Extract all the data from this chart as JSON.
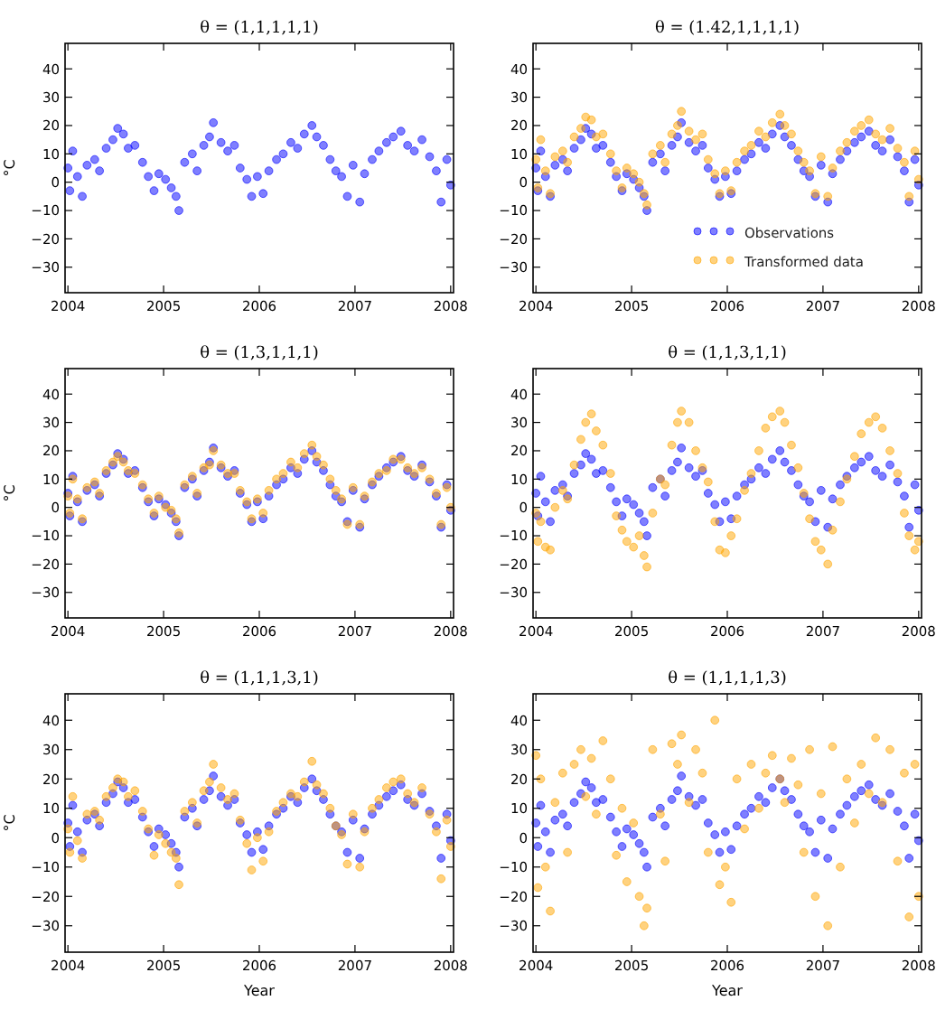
{
  "chart_data": [
    {
      "type": "scatter",
      "title": "θ = (1,1,1,1,1)",
      "ylabel": "°C",
      "xlim": [
        2003.97,
        2008.03
      ],
      "xticks": [
        2004,
        2005,
        2006,
        2007,
        2008
      ],
      "ylim": [
        -39,
        49
      ],
      "yticks": [
        -30,
        -20,
        -10,
        0,
        10,
        20,
        30,
        40
      ],
      "marker": "circle",
      "series": [
        {
          "color": "#0000ff",
          "x": [
            2004.0,
            2004.02,
            2004.05,
            2004.1,
            2004.15,
            2004.2,
            2004.28,
            2004.33,
            2004.4,
            2004.47,
            2004.52,
            2004.58,
            2004.63,
            2004.7,
            2004.78,
            2004.84,
            2004.9,
            2004.95,
            2005.02,
            2005.08,
            2005.13,
            2005.16,
            2005.22,
            2005.3,
            2005.35,
            2005.42,
            2005.48,
            2005.52,
            2005.6,
            2005.67,
            2005.74,
            2005.8,
            2005.87,
            2005.92,
            2005.98,
            2006.04,
            2006.1,
            2006.18,
            2006.25,
            2006.33,
            2006.4,
            2006.47,
            2006.55,
            2006.6,
            2006.67,
            2006.74,
            2006.8,
            2006.86,
            2006.92,
            2006.98,
            2007.05,
            2007.1,
            2007.18,
            2007.25,
            2007.33,
            2007.4,
            2007.48,
            2007.55,
            2007.62,
            2007.7,
            2007.78,
            2007.85,
            2007.9,
            2007.96,
            2008.0
          ],
          "values": [
            5,
            -3,
            11,
            2,
            -5,
            6,
            8,
            4,
            12,
            15,
            19,
            17,
            12,
            13,
            7,
            2,
            -3,
            3,
            1,
            -2,
            -5,
            -10,
            7,
            10,
            4,
            13,
            16,
            21,
            14,
            11,
            13,
            5,
            1,
            -5,
            2,
            -4,
            4,
            8,
            10,
            14,
            12,
            17,
            20,
            16,
            13,
            8,
            4,
            2,
            -5,
            6,
            -7,
            3,
            8,
            11,
            14,
            16,
            18,
            13,
            11,
            15,
            9,
            4,
            -7,
            8,
            -1
          ]
        }
      ]
    },
    {
      "type": "scatter",
      "title": "θ = (1.42,1,1,1,1)",
      "xlim": [
        2003.97,
        2008.03
      ],
      "xticks": [
        2004,
        2005,
        2006,
        2007,
        2008
      ],
      "ylim": [
        -39,
        49
      ],
      "yticks": [
        -30,
        -20,
        -10,
        0,
        10,
        20,
        30,
        40
      ],
      "marker": "circle",
      "legend": "bottom right",
      "series": [
        {
          "name": "Observations",
          "color": "#0000ff",
          "x": [
            2004.0,
            2004.02,
            2004.05,
            2004.1,
            2004.15,
            2004.2,
            2004.28,
            2004.33,
            2004.4,
            2004.47,
            2004.52,
            2004.58,
            2004.63,
            2004.7,
            2004.78,
            2004.84,
            2004.9,
            2004.95,
            2005.02,
            2005.08,
            2005.13,
            2005.16,
            2005.22,
            2005.3,
            2005.35,
            2005.42,
            2005.48,
            2005.52,
            2005.6,
            2005.67,
            2005.74,
            2005.8,
            2005.87,
            2005.92,
            2005.98,
            2006.04,
            2006.1,
            2006.18,
            2006.25,
            2006.33,
            2006.4,
            2006.47,
            2006.55,
            2006.6,
            2006.67,
            2006.74,
            2006.8,
            2006.86,
            2006.92,
            2006.98,
            2007.05,
            2007.1,
            2007.18,
            2007.25,
            2007.33,
            2007.4,
            2007.48,
            2007.55,
            2007.62,
            2007.7,
            2007.78,
            2007.85,
            2007.9,
            2007.96,
            2008.0
          ],
          "values": [
            5,
            -3,
            11,
            2,
            -5,
            6,
            8,
            4,
            12,
            15,
            19,
            17,
            12,
            13,
            7,
            2,
            -3,
            3,
            1,
            -2,
            -5,
            -10,
            7,
            10,
            4,
            13,
            16,
            21,
            14,
            11,
            13,
            5,
            1,
            -5,
            2,
            -4,
            4,
            8,
            10,
            14,
            12,
            17,
            20,
            16,
            13,
            8,
            4,
            2,
            -5,
            6,
            -7,
            3,
            8,
            11,
            14,
            16,
            18,
            13,
            11,
            15,
            9,
            4,
            -7,
            8,
            -1
          ]
        },
        {
          "name": "Transformed data",
          "color": "#ffa500",
          "x": [
            2004.0,
            2004.02,
            2004.05,
            2004.1,
            2004.15,
            2004.2,
            2004.28,
            2004.33,
            2004.4,
            2004.47,
            2004.52,
            2004.58,
            2004.63,
            2004.7,
            2004.78,
            2004.84,
            2004.9,
            2004.95,
            2005.02,
            2005.08,
            2005.13,
            2005.16,
            2005.22,
            2005.3,
            2005.35,
            2005.42,
            2005.48,
            2005.52,
            2005.6,
            2005.67,
            2005.74,
            2005.8,
            2005.87,
            2005.92,
            2005.98,
            2006.04,
            2006.1,
            2006.18,
            2006.25,
            2006.33,
            2006.4,
            2006.47,
            2006.55,
            2006.6,
            2006.67,
            2006.74,
            2006.8,
            2006.86,
            2006.92,
            2006.98,
            2007.05,
            2007.1,
            2007.18,
            2007.25,
            2007.33,
            2007.4,
            2007.48,
            2007.55,
            2007.62,
            2007.7,
            2007.78,
            2007.85,
            2007.9,
            2007.96,
            2008.0
          ],
          "values": [
            8,
            -2,
            15,
            4,
            -4,
            9,
            11,
            7,
            16,
            19,
            23,
            22,
            16,
            17,
            10,
            4,
            -2,
            5,
            3,
            0,
            -4,
            -8,
            10,
            13,
            7,
            17,
            20,
            25,
            18,
            15,
            17,
            8,
            3,
            -4,
            4,
            -3,
            7,
            11,
            13,
            18,
            16,
            21,
            24,
            20,
            17,
            11,
            7,
            4,
            -4,
            9,
            -5,
            5,
            11,
            14,
            18,
            20,
            22,
            17,
            15,
            19,
            12,
            7,
            -5,
            11,
            1
          ]
        }
      ]
    },
    {
      "type": "scatter",
      "title": "θ = (1,3,1,1,1)",
      "ylabel": "°C",
      "xlim": [
        2003.97,
        2008.03
      ],
      "xticks": [
        2004,
        2005,
        2006,
        2007,
        2008
      ],
      "ylim": [
        -39,
        49
      ],
      "yticks": [
        -30,
        -20,
        -10,
        0,
        10,
        20,
        30,
        40
      ],
      "marker": "circle",
      "series": [
        {
          "color": "#0000ff",
          "x": [
            2004.0,
            2004.02,
            2004.05,
            2004.1,
            2004.15,
            2004.2,
            2004.28,
            2004.33,
            2004.4,
            2004.47,
            2004.52,
            2004.58,
            2004.63,
            2004.7,
            2004.78,
            2004.84,
            2004.9,
            2004.95,
            2005.02,
            2005.08,
            2005.13,
            2005.16,
            2005.22,
            2005.3,
            2005.35,
            2005.42,
            2005.48,
            2005.52,
            2005.6,
            2005.67,
            2005.74,
            2005.8,
            2005.87,
            2005.92,
            2005.98,
            2006.04,
            2006.1,
            2006.18,
            2006.25,
            2006.33,
            2006.4,
            2006.47,
            2006.55,
            2006.6,
            2006.67,
            2006.74,
            2006.8,
            2006.86,
            2006.92,
            2006.98,
            2007.05,
            2007.1,
            2007.18,
            2007.25,
            2007.33,
            2007.4,
            2007.48,
            2007.55,
            2007.62,
            2007.7,
            2007.78,
            2007.85,
            2007.9,
            2007.96,
            2008.0
          ],
          "values": [
            5,
            -3,
            11,
            2,
            -5,
            6,
            8,
            4,
            12,
            15,
            19,
            17,
            12,
            13,
            7,
            2,
            -3,
            3,
            1,
            -2,
            -5,
            -10,
            7,
            10,
            4,
            13,
            16,
            21,
            14,
            11,
            13,
            5,
            1,
            -5,
            2,
            -4,
            4,
            8,
            10,
            14,
            12,
            17,
            20,
            16,
            13,
            8,
            4,
            2,
            -5,
            6,
            -7,
            3,
            8,
            11,
            14,
            16,
            18,
            13,
            11,
            15,
            9,
            4,
            -7,
            8,
            -1
          ]
        },
        {
          "color": "#ffa500",
          "x": [
            2004.0,
            2004.02,
            2004.05,
            2004.1,
            2004.15,
            2004.2,
            2004.28,
            2004.33,
            2004.4,
            2004.47,
            2004.52,
            2004.58,
            2004.63,
            2004.7,
            2004.78,
            2004.84,
            2004.9,
            2004.95,
            2005.02,
            2005.08,
            2005.13,
            2005.16,
            2005.22,
            2005.3,
            2005.35,
            2005.42,
            2005.48,
            2005.52,
            2005.6,
            2005.67,
            2005.74,
            2005.8,
            2005.87,
            2005.92,
            2005.98,
            2006.04,
            2006.1,
            2006.18,
            2006.25,
            2006.33,
            2006.4,
            2006.47,
            2006.55,
            2006.6,
            2006.67,
            2006.74,
            2006.8,
            2006.86,
            2006.92,
            2006.98,
            2007.05,
            2007.1,
            2007.18,
            2007.25,
            2007.33,
            2007.4,
            2007.48,
            2007.55,
            2007.62,
            2007.7,
            2007.78,
            2007.85,
            2007.9,
            2007.96,
            2008.0
          ],
          "values": [
            4,
            -2,
            10,
            3,
            -4,
            7,
            9,
            5,
            13,
            16,
            18,
            16,
            13,
            12,
            8,
            3,
            -2,
            4,
            0,
            -1,
            -4,
            -9,
            8,
            11,
            5,
            14,
            15,
            20,
            15,
            12,
            12,
            6,
            2,
            -4,
            3,
            -2,
            6,
            10,
            12,
            16,
            14,
            19,
            22,
            18,
            15,
            10,
            6,
            3,
            -6,
            7,
            -6,
            4,
            9,
            12,
            13,
            17,
            17,
            14,
            12,
            14,
            10,
            5,
            -6,
            7,
            0
          ]
        }
      ]
    },
    {
      "type": "scatter",
      "title": "θ = (1,1,3,1,1)",
      "xlim": [
        2003.97,
        2008.03
      ],
      "xticks": [
        2004,
        2005,
        2006,
        2007,
        2008
      ],
      "ylim": [
        -39,
        49
      ],
      "yticks": [
        -30,
        -20,
        -10,
        0,
        10,
        20,
        30,
        40
      ],
      "marker": "circle",
      "series": [
        {
          "color": "#0000ff",
          "x": [
            2004.0,
            2004.02,
            2004.05,
            2004.1,
            2004.15,
            2004.2,
            2004.28,
            2004.33,
            2004.4,
            2004.47,
            2004.52,
            2004.58,
            2004.63,
            2004.7,
            2004.78,
            2004.84,
            2004.9,
            2004.95,
            2005.02,
            2005.08,
            2005.13,
            2005.16,
            2005.22,
            2005.3,
            2005.35,
            2005.42,
            2005.48,
            2005.52,
            2005.6,
            2005.67,
            2005.74,
            2005.8,
            2005.87,
            2005.92,
            2005.98,
            2006.04,
            2006.1,
            2006.18,
            2006.25,
            2006.33,
            2006.4,
            2006.47,
            2006.55,
            2006.6,
            2006.67,
            2006.74,
            2006.8,
            2006.86,
            2006.92,
            2006.98,
            2007.05,
            2007.1,
            2007.18,
            2007.25,
            2007.33,
            2007.4,
            2007.48,
            2007.55,
            2007.62,
            2007.7,
            2007.78,
            2007.85,
            2007.9,
            2007.96,
            2008.0
          ],
          "values": [
            5,
            -3,
            11,
            2,
            -5,
            6,
            8,
            4,
            12,
            15,
            19,
            17,
            12,
            13,
            7,
            2,
            -3,
            3,
            1,
            -2,
            -5,
            -10,
            7,
            10,
            4,
            13,
            16,
            21,
            14,
            11,
            13,
            5,
            1,
            -5,
            2,
            -4,
            4,
            8,
            10,
            14,
            12,
            17,
            20,
            16,
            13,
            8,
            4,
            2,
            -5,
            6,
            -7,
            3,
            8,
            11,
            14,
            16,
            18,
            13,
            11,
            15,
            9,
            4,
            -7,
            8,
            -1
          ]
        },
        {
          "color": "#ffa500",
          "x": [
            2004.0,
            2004.02,
            2004.05,
            2004.1,
            2004.15,
            2004.2,
            2004.28,
            2004.33,
            2004.4,
            2004.47,
            2004.52,
            2004.58,
            2004.63,
            2004.7,
            2004.78,
            2004.84,
            2004.9,
            2004.95,
            2005.02,
            2005.08,
            2005.13,
            2005.16,
            2005.22,
            2005.3,
            2005.35,
            2005.42,
            2005.48,
            2005.52,
            2005.6,
            2005.67,
            2005.74,
            2005.8,
            2005.87,
            2005.92,
            2005.98,
            2006.04,
            2006.1,
            2006.18,
            2006.25,
            2006.33,
            2006.4,
            2006.47,
            2006.55,
            2006.6,
            2006.67,
            2006.74,
            2006.8,
            2006.86,
            2006.92,
            2006.98,
            2007.05,
            2007.1,
            2007.18,
            2007.25,
            2007.33,
            2007.4,
            2007.48,
            2007.55,
            2007.62,
            2007.7,
            2007.78,
            2007.85,
            2007.9,
            2007.96,
            2008.0
          ],
          "values": [
            -2,
            -12,
            -5,
            -14,
            -15,
            0,
            6,
            3,
            15,
            24,
            30,
            33,
            27,
            22,
            12,
            -3,
            -8,
            -12,
            -14,
            -10,
            -17,
            -21,
            -2,
            10,
            8,
            22,
            30,
            34,
            30,
            20,
            14,
            9,
            -5,
            -15,
            -16,
            -10,
            -4,
            6,
            12,
            20,
            28,
            32,
            34,
            30,
            22,
            14,
            5,
            -4,
            -12,
            -15,
            -20,
            -8,
            2,
            10,
            18,
            26,
            30,
            32,
            28,
            20,
            12,
            -2,
            -10,
            -15,
            -12
          ]
        }
      ]
    },
    {
      "type": "scatter",
      "title": "θ = (1,1,1,3,1)",
      "xlabel": "Year",
      "ylabel": "°C",
      "xlim": [
        2003.97,
        2008.03
      ],
      "xticks": [
        2004,
        2005,
        2006,
        2007,
        2008
      ],
      "ylim": [
        -39,
        49
      ],
      "yticks": [
        -30,
        -20,
        -10,
        0,
        10,
        20,
        30,
        40
      ],
      "marker": "circle",
      "series": [
        {
          "color": "#0000ff",
          "x": [
            2004.0,
            2004.02,
            2004.05,
            2004.1,
            2004.15,
            2004.2,
            2004.28,
            2004.33,
            2004.4,
            2004.47,
            2004.52,
            2004.58,
            2004.63,
            2004.7,
            2004.78,
            2004.84,
            2004.9,
            2004.95,
            2005.02,
            2005.08,
            2005.13,
            2005.16,
            2005.22,
            2005.3,
            2005.35,
            2005.42,
            2005.48,
            2005.52,
            2005.6,
            2005.67,
            2005.74,
            2005.8,
            2005.87,
            2005.92,
            2005.98,
            2006.04,
            2006.1,
            2006.18,
            2006.25,
            2006.33,
            2006.4,
            2006.47,
            2006.55,
            2006.6,
            2006.67,
            2006.74,
            2006.8,
            2006.86,
            2006.92,
            2006.98,
            2007.05,
            2007.1,
            2007.18,
            2007.25,
            2007.33,
            2007.4,
            2007.48,
            2007.55,
            2007.62,
            2007.7,
            2007.78,
            2007.85,
            2007.9,
            2007.96,
            2008.0
          ],
          "values": [
            5,
            -3,
            11,
            2,
            -5,
            6,
            8,
            4,
            12,
            15,
            19,
            17,
            12,
            13,
            7,
            2,
            -3,
            3,
            1,
            -2,
            -5,
            -10,
            7,
            10,
            4,
            13,
            16,
            21,
            14,
            11,
            13,
            5,
            1,
            -5,
            2,
            -4,
            4,
            8,
            10,
            14,
            12,
            17,
            20,
            16,
            13,
            8,
            4,
            2,
            -5,
            6,
            -7,
            3,
            8,
            11,
            14,
            16,
            18,
            13,
            11,
            15,
            9,
            4,
            -7,
            8,
            -1
          ]
        },
        {
          "color": "#ffa500",
          "x": [
            2004.0,
            2004.02,
            2004.05,
            2004.1,
            2004.15,
            2004.2,
            2004.28,
            2004.33,
            2004.4,
            2004.47,
            2004.52,
            2004.58,
            2004.63,
            2004.7,
            2004.78,
            2004.84,
            2004.9,
            2004.95,
            2005.02,
            2005.08,
            2005.13,
            2005.16,
            2005.22,
            2005.3,
            2005.35,
            2005.42,
            2005.48,
            2005.52,
            2005.6,
            2005.67,
            2005.74,
            2005.8,
            2005.87,
            2005.92,
            2005.98,
            2006.04,
            2006.1,
            2006.18,
            2006.25,
            2006.33,
            2006.4,
            2006.47,
            2006.55,
            2006.6,
            2006.67,
            2006.74,
            2006.8,
            2006.86,
            2006.92,
            2006.98,
            2007.05,
            2007.1,
            2007.18,
            2007.25,
            2007.33,
            2007.4,
            2007.48,
            2007.55,
            2007.62,
            2007.7,
            2007.78,
            2007.85,
            2007.9,
            2007.96,
            2008.0
          ],
          "values": [
            3,
            -5,
            14,
            -1,
            -7,
            8,
            9,
            6,
            14,
            17,
            20,
            19,
            14,
            16,
            9,
            3,
            -6,
            1,
            -2,
            -5,
            -7,
            -16,
            9,
            12,
            5,
            16,
            19,
            25,
            17,
            13,
            15,
            6,
            -2,
            -11,
            0,
            -8,
            2,
            9,
            12,
            15,
            14,
            19,
            26,
            18,
            15,
            10,
            4,
            1,
            -9,
            8,
            -10,
            2,
            10,
            13,
            17,
            19,
            20,
            15,
            12,
            17,
            8,
            2,
            -14,
            6,
            -3
          ]
        }
      ]
    },
    {
      "type": "scatter",
      "title": "θ = (1,1,1,1,3)",
      "xlabel": "Year",
      "xlim": [
        2003.97,
        2008.03
      ],
      "xticks": [
        2004,
        2005,
        2006,
        2007,
        2008
      ],
      "ylim": [
        -39,
        49
      ],
      "yticks": [
        -30,
        -20,
        -10,
        0,
        10,
        20,
        30,
        40
      ],
      "marker": "circle",
      "series": [
        {
          "color": "#0000ff",
          "x": [
            2004.0,
            2004.02,
            2004.05,
            2004.1,
            2004.15,
            2004.2,
            2004.28,
            2004.33,
            2004.4,
            2004.47,
            2004.52,
            2004.58,
            2004.63,
            2004.7,
            2004.78,
            2004.84,
            2004.9,
            2004.95,
            2005.02,
            2005.08,
            2005.13,
            2005.16,
            2005.22,
            2005.3,
            2005.35,
            2005.42,
            2005.48,
            2005.52,
            2005.6,
            2005.67,
            2005.74,
            2005.8,
            2005.87,
            2005.92,
            2005.98,
            2006.04,
            2006.1,
            2006.18,
            2006.25,
            2006.33,
            2006.4,
            2006.47,
            2006.55,
            2006.6,
            2006.67,
            2006.74,
            2006.8,
            2006.86,
            2006.92,
            2006.98,
            2007.05,
            2007.1,
            2007.18,
            2007.25,
            2007.33,
            2007.4,
            2007.48,
            2007.55,
            2007.62,
            2007.7,
            2007.78,
            2007.85,
            2007.9,
            2007.96,
            2008.0
          ],
          "values": [
            5,
            -3,
            11,
            2,
            -5,
            6,
            8,
            4,
            12,
            15,
            19,
            17,
            12,
            13,
            7,
            2,
            -3,
            3,
            1,
            -2,
            -5,
            -10,
            7,
            10,
            4,
            13,
            16,
            21,
            14,
            11,
            13,
            5,
            1,
            -5,
            2,
            -4,
            4,
            8,
            10,
            14,
            12,
            17,
            20,
            16,
            13,
            8,
            4,
            2,
            -5,
            6,
            -7,
            3,
            8,
            11,
            14,
            16,
            18,
            13,
            11,
            15,
            9,
            4,
            -7,
            8,
            -1
          ]
        },
        {
          "color": "#ffa500",
          "x": [
            2004.0,
            2004.02,
            2004.05,
            2004.1,
            2004.15,
            2004.2,
            2004.28,
            2004.33,
            2004.4,
            2004.47,
            2004.52,
            2004.58,
            2004.63,
            2004.7,
            2004.78,
            2004.84,
            2004.9,
            2004.95,
            2005.02,
            2005.08,
            2005.13,
            2005.16,
            2005.22,
            2005.3,
            2005.35,
            2005.42,
            2005.48,
            2005.52,
            2005.6,
            2005.67,
            2005.74,
            2005.8,
            2005.87,
            2005.92,
            2005.98,
            2006.04,
            2006.1,
            2006.18,
            2006.25,
            2006.33,
            2006.4,
            2006.47,
            2006.55,
            2006.6,
            2006.67,
            2006.74,
            2006.8,
            2006.86,
            2006.92,
            2006.98,
            2007.05,
            2007.1,
            2007.18,
            2007.25,
            2007.33,
            2007.4,
            2007.48,
            2007.55,
            2007.62,
            2007.7,
            2007.78,
            2007.85,
            2007.9,
            2007.96,
            2008.0
          ],
          "values": [
            28,
            -17,
            20,
            -10,
            -25,
            12,
            22,
            -5,
            25,
            30,
            14,
            27,
            8,
            33,
            20,
            -6,
            10,
            -15,
            5,
            -20,
            -30,
            -24,
            30,
            8,
            -8,
            32,
            25,
            35,
            12,
            30,
            22,
            -5,
            40,
            -16,
            -10,
            -22,
            20,
            3,
            25,
            10,
            22,
            28,
            20,
            12,
            27,
            18,
            -5,
            30,
            -20,
            15,
            -30,
            31,
            -10,
            20,
            5,
            25,
            15,
            34,
            12,
            30,
            -8,
            22,
            -27,
            25,
            -20
          ]
        }
      ]
    }
  ]
}
